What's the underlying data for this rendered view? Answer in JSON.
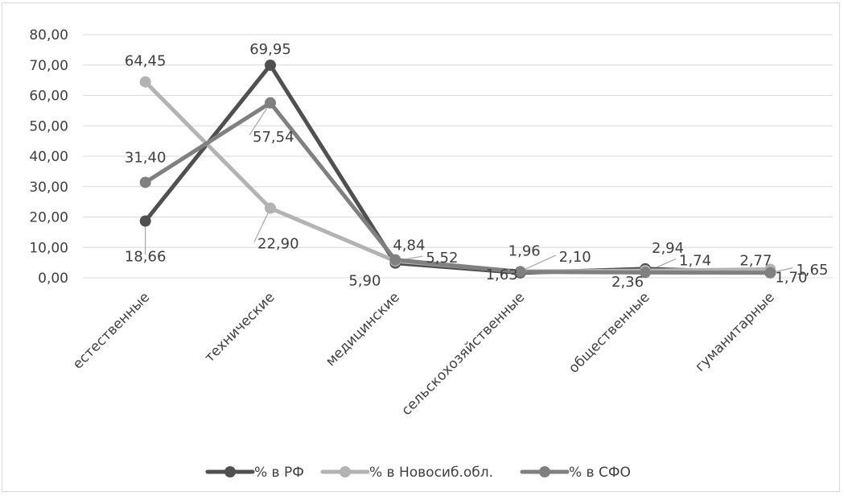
{
  "chart_data": {
    "type": "line",
    "categories": [
      "естественные",
      "технические",
      "медицинские",
      "сельскохозяйственные",
      "общественные",
      "гуманитарные"
    ],
    "y_ticks": [
      "0,00",
      "10,00",
      "20,00",
      "30,00",
      "40,00",
      "50,00",
      "60,00",
      "70,00",
      "80,00"
    ],
    "ylim": [
      0,
      80
    ],
    "grid": true,
    "legend_position": "bottom",
    "series": [
      {
        "name": "% в РФ",
        "color": "#505050",
        "values": [
          18.66,
          69.95,
          4.84,
          1.63,
          2.94,
          1.7
        ],
        "labels": [
          "18,66",
          "69,95",
          "4,84",
          "1,63",
          "2,94",
          "1,70"
        ]
      },
      {
        "name": "% в Новосиб.обл.",
        "color": "#b3b3b3",
        "values": [
          64.45,
          22.9,
          5.52,
          2.1,
          2.36,
          2.77
        ],
        "labels": [
          "64,45",
          "22,90",
          "5,52",
          "2,10",
          "2,36",
          "2,77"
        ]
      },
      {
        "name": "% в СФО",
        "color": "#808080",
        "values": [
          31.4,
          57.54,
          5.9,
          1.96,
          1.74,
          1.65
        ],
        "labels": [
          "31,40",
          "57,54",
          "5,90",
          "1,96",
          "1,74",
          "1,65"
        ]
      }
    ]
  }
}
